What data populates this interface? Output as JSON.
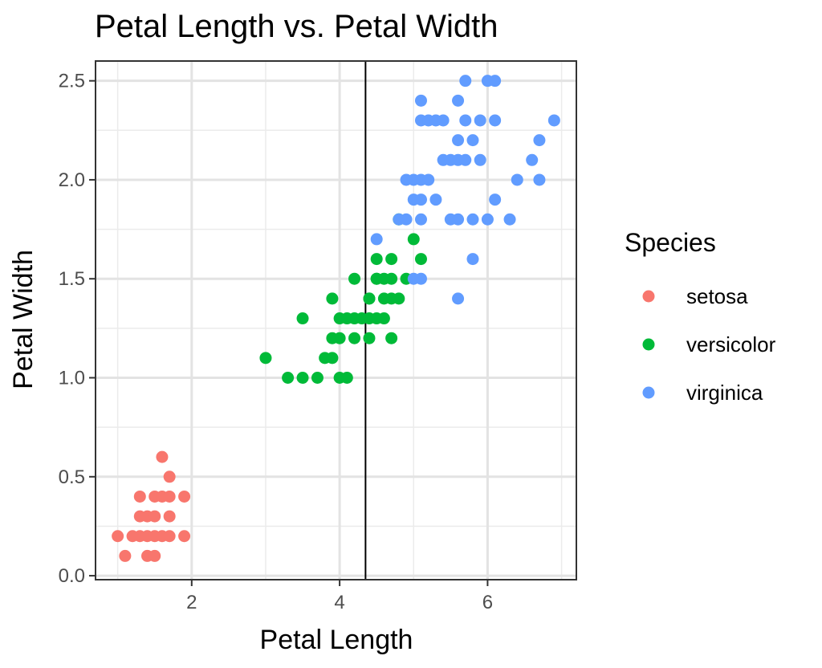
{
  "chart_data": {
    "type": "scatter",
    "title": "Petal Length vs. Petal Width",
    "xlabel": "Petal Length",
    "ylabel": "Petal Width",
    "xlim": [
      0.7,
      7.2
    ],
    "ylim": [
      -0.02,
      2.6
    ],
    "x_ticks": [
      2,
      4,
      6
    ],
    "y_ticks": [
      0.0,
      0.5,
      1.0,
      1.5,
      2.0,
      2.5
    ],
    "y_tick_labels": [
      "0.0",
      "0.5",
      "1.0",
      "1.5",
      "2.0",
      "2.5"
    ],
    "grid": true,
    "vline_x": 4.35,
    "legend": {
      "title": "Species",
      "position": "right"
    },
    "series": [
      {
        "name": "setosa",
        "color": "#F8766D",
        "points": [
          [
            1.0,
            0.2
          ],
          [
            1.1,
            0.1
          ],
          [
            1.2,
            0.2
          ],
          [
            1.3,
            0.2
          ],
          [
            1.3,
            0.3
          ],
          [
            1.3,
            0.4
          ],
          [
            1.4,
            0.2
          ],
          [
            1.4,
            0.3
          ],
          [
            1.4,
            0.1
          ],
          [
            1.5,
            0.2
          ],
          [
            1.5,
            0.4
          ],
          [
            1.5,
            0.3
          ],
          [
            1.5,
            0.1
          ],
          [
            1.6,
            0.2
          ],
          [
            1.6,
            0.4
          ],
          [
            1.6,
            0.6
          ],
          [
            1.7,
            0.2
          ],
          [
            1.7,
            0.4
          ],
          [
            1.7,
            0.5
          ],
          [
            1.7,
            0.3
          ],
          [
            1.9,
            0.2
          ],
          [
            1.9,
            0.4
          ]
        ]
      },
      {
        "name": "versicolor",
        "color": "#00BA38",
        "points": [
          [
            3.0,
            1.1
          ],
          [
            3.3,
            1.0
          ],
          [
            3.5,
            1.0
          ],
          [
            3.5,
            1.3
          ],
          [
            3.7,
            1.0
          ],
          [
            3.8,
            1.1
          ],
          [
            3.9,
            1.1
          ],
          [
            3.9,
            1.4
          ],
          [
            3.9,
            1.2
          ],
          [
            4.0,
            1.0
          ],
          [
            4.0,
            1.3
          ],
          [
            4.0,
            1.2
          ],
          [
            4.1,
            1.0
          ],
          [
            4.1,
            1.3
          ],
          [
            4.2,
            1.3
          ],
          [
            4.2,
            1.2
          ],
          [
            4.3,
            1.3
          ],
          [
            4.4,
            1.3
          ],
          [
            4.4,
            1.2
          ],
          [
            4.4,
            1.4
          ],
          [
            4.5,
            1.5
          ],
          [
            4.5,
            1.3
          ],
          [
            4.5,
            1.6
          ],
          [
            4.6,
            1.3
          ],
          [
            4.6,
            1.5
          ],
          [
            4.6,
            1.4
          ],
          [
            4.7,
            1.4
          ],
          [
            4.7,
            1.6
          ],
          [
            4.7,
            1.5
          ],
          [
            4.7,
            1.2
          ],
          [
            4.8,
            1.4
          ],
          [
            4.8,
            1.8
          ],
          [
            4.9,
            1.5
          ],
          [
            5.0,
            1.7
          ],
          [
            5.1,
            1.6
          ],
          [
            4.2,
            1.5
          ],
          [
            4.4,
            1.4
          ],
          [
            4.5,
            1.5
          ]
        ]
      },
      {
        "name": "virginica",
        "color": "#619CFF",
        "points": [
          [
            4.5,
            1.7
          ],
          [
            4.8,
            1.8
          ],
          [
            4.9,
            1.8
          ],
          [
            4.9,
            2.0
          ],
          [
            5.0,
            1.5
          ],
          [
            5.0,
            1.9
          ],
          [
            5.0,
            2.0
          ],
          [
            5.1,
            1.5
          ],
          [
            5.1,
            1.8
          ],
          [
            5.1,
            1.9
          ],
          [
            5.1,
            2.0
          ],
          [
            5.1,
            2.3
          ],
          [
            5.1,
            2.4
          ],
          [
            5.2,
            2.0
          ],
          [
            5.2,
            2.3
          ],
          [
            5.3,
            1.9
          ],
          [
            5.3,
            2.3
          ],
          [
            5.4,
            2.1
          ],
          [
            5.4,
            2.3
          ],
          [
            5.5,
            1.8
          ],
          [
            5.5,
            2.1
          ],
          [
            5.6,
            1.4
          ],
          [
            5.6,
            1.8
          ],
          [
            5.6,
            2.1
          ],
          [
            5.6,
            2.2
          ],
          [
            5.6,
            2.4
          ],
          [
            5.7,
            2.1
          ],
          [
            5.7,
            2.3
          ],
          [
            5.7,
            2.5
          ],
          [
            5.8,
            1.6
          ],
          [
            5.8,
            1.8
          ],
          [
            5.8,
            2.2
          ],
          [
            5.9,
            2.1
          ],
          [
            5.9,
            2.3
          ],
          [
            6.0,
            1.8
          ],
          [
            6.0,
            2.5
          ],
          [
            6.1,
            1.9
          ],
          [
            6.1,
            2.3
          ],
          [
            6.1,
            2.5
          ],
          [
            6.3,
            1.8
          ],
          [
            6.4,
            2.0
          ],
          [
            6.6,
            2.1
          ],
          [
            6.7,
            2.0
          ],
          [
            6.7,
            2.2
          ],
          [
            6.9,
            2.3
          ]
        ]
      }
    ]
  }
}
